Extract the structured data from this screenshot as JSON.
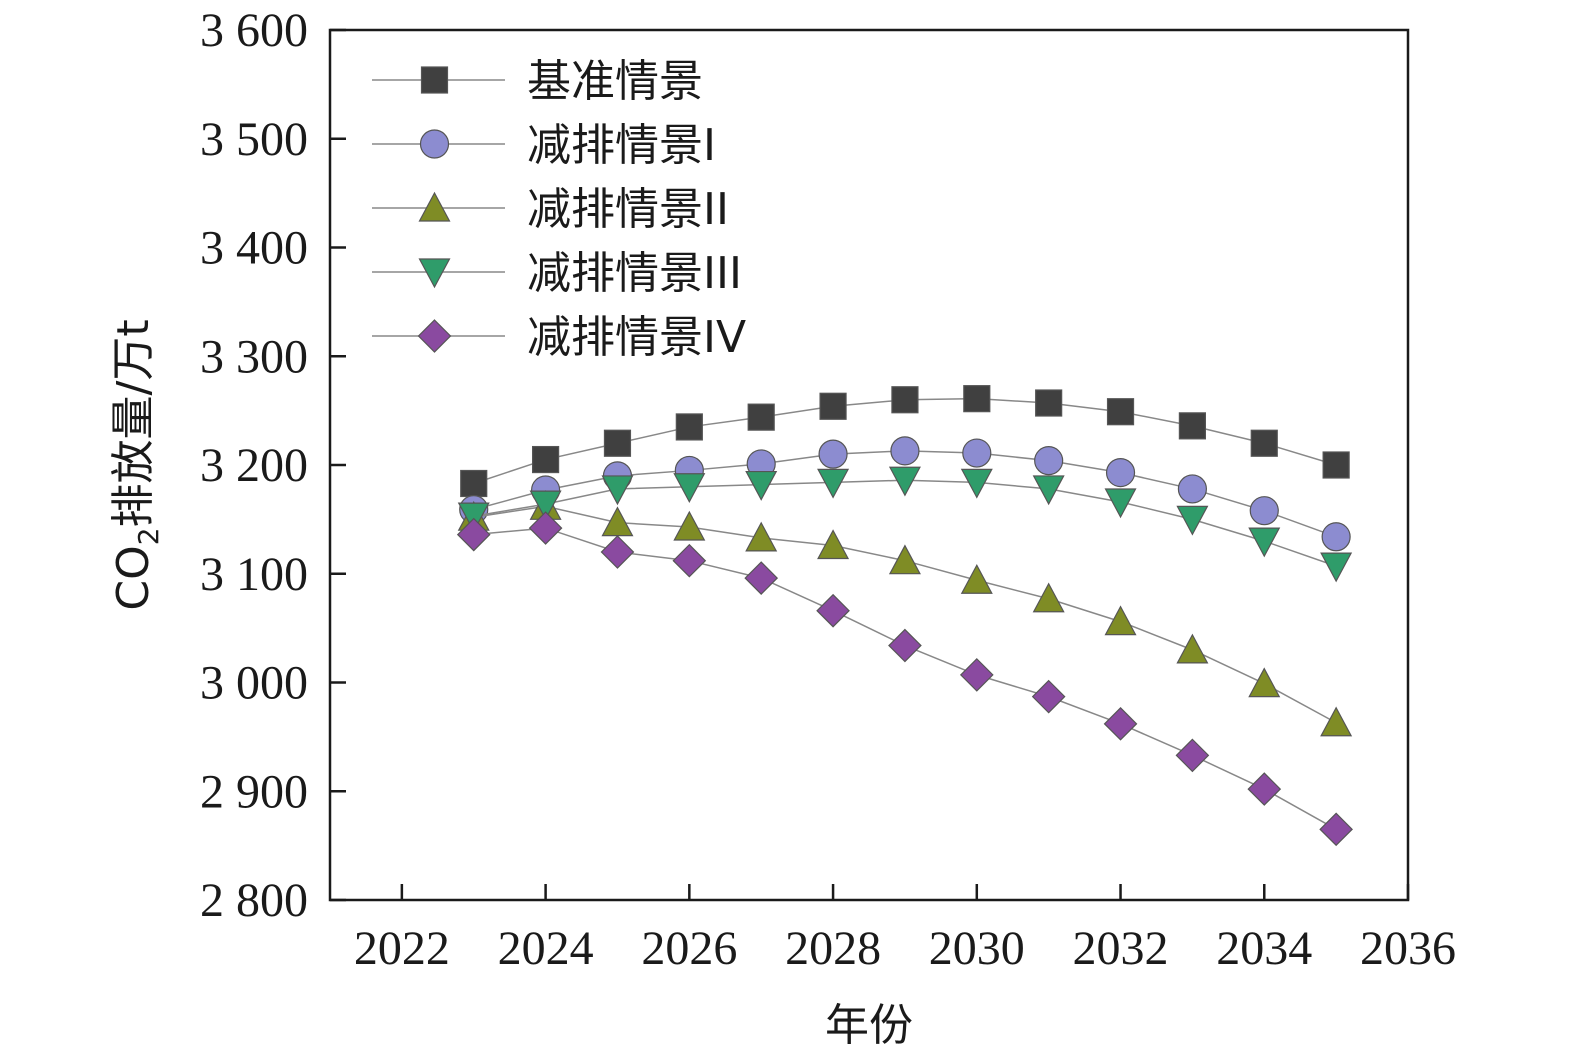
{
  "chart_data": {
    "type": "line",
    "xlabel": "年份",
    "ylabel": {
      "prefix": "CO",
      "subscript": "2",
      "suffix": "排放量/万t"
    },
    "xlim": [
      2021,
      2036
    ],
    "ylim": [
      2800,
      3600
    ],
    "x_ticks": [
      2022,
      2024,
      2026,
      2028,
      2030,
      2032,
      2034,
      2036
    ],
    "x_tick_labels": [
      "2022",
      "2024",
      "2026",
      "2028",
      "2030",
      "2032",
      "2034",
      "2036"
    ],
    "y_ticks": [
      2800,
      2900,
      3000,
      3100,
      3200,
      3300,
      3400,
      3500,
      3600
    ],
    "y_tick_labels": [
      "2 800",
      "2 900",
      "3 000",
      "3 100",
      "3 200",
      "3 300",
      "3 400",
      "3 500",
      "3 600"
    ],
    "grid": false,
    "legend_position": "top-left",
    "x": [
      2023,
      2024,
      2025,
      2026,
      2027,
      2028,
      2029,
      2030,
      2031,
      2032,
      2033,
      2034,
      2035
    ],
    "series": [
      {
        "name": "基准情景",
        "marker": "square",
        "color": "#404040",
        "values": [
          3183,
          3205,
          3220,
          3235,
          3244,
          3254,
          3260,
          3261,
          3257,
          3249,
          3236,
          3220,
          3200
        ]
      },
      {
        "name": "减排情景I",
        "marker": "circle",
        "color": "#8c8cd0",
        "values": [
          3159,
          3177,
          3190,
          3195,
          3201,
          3210,
          3213,
          3211,
          3204,
          3193,
          3178,
          3158,
          3134
        ]
      },
      {
        "name": "减排情景II",
        "marker": "triangle-up",
        "color": "#7f8c25",
        "values": [
          3152,
          3162,
          3147,
          3143,
          3133,
          3126,
          3112,
          3094,
          3077,
          3056,
          3030,
          2999,
          2963
        ]
      },
      {
        "name": "减排情景III",
        "marker": "triangle-down",
        "color": "#2f9c6a",
        "values": [
          3153,
          3164,
          3178,
          3180,
          3182,
          3184,
          3186,
          3184,
          3178,
          3166,
          3150,
          3130,
          3107
        ]
      },
      {
        "name": "减排情景IV",
        "marker": "diamond",
        "color": "#8a4aa0",
        "values": [
          3136,
          3142,
          3120,
          3112,
          3096,
          3066,
          3034,
          3007,
          2987,
          2962,
          2933,
          2902,
          2865
        ]
      }
    ]
  }
}
